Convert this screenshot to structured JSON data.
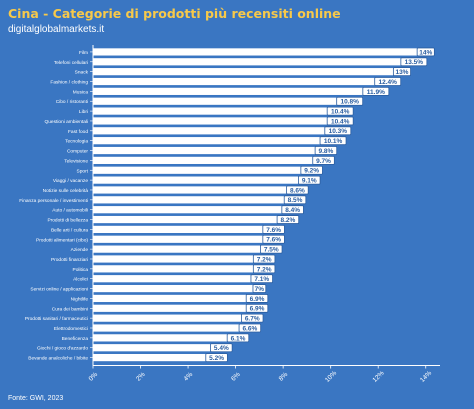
{
  "title": "Cina - Categorie di prodotti più recensiti online",
  "subtitle": "digitalglobalmarkets.it",
  "source": "Fonte: GWI, 2023",
  "colors": {
    "background": "#3a76c2",
    "bar": "#ffffff",
    "title": "#f7c94a",
    "label_text": "#2a5da0"
  },
  "chart_data": {
    "type": "bar",
    "orientation": "horizontal",
    "categories": [
      "Film",
      "Telefoni cellulari",
      "Snack",
      "Fashion / clothing",
      "Musica",
      "Cibo / ristoranti",
      "Libri",
      "Questioni ambientali",
      "Fast food",
      "Tecnologia",
      "Computer",
      "Televisione",
      "Sport",
      "Viaggi / vacanze",
      "Notizie sulle celebrità",
      "Finanza personale / investimenti",
      "Auto / automobili",
      "Prodotti di bellezza",
      "Belle arti / cultura",
      "Prodotti alimentari (cibo)",
      "Aziende",
      "Prodotti finanziari",
      "Politica",
      "Alcolici",
      "Servizi online / applicazioni",
      "Nightlife",
      "Cura dei bambini",
      "Prodotti sanitari / farmaceutici",
      "Elettrodomestici",
      "Beneficenza",
      "Giochi / gioco d'azzardo",
      "Bevande analcoliche / bibite"
    ],
    "values": [
      14,
      13.5,
      13,
      12.4,
      11.9,
      10.8,
      10.4,
      10.4,
      10.3,
      10.1,
      9.8,
      9.7,
      9.2,
      9.1,
      8.6,
      8.5,
      8.4,
      8.2,
      7.6,
      7.6,
      7.5,
      7.2,
      7.2,
      7.1,
      7,
      6.9,
      6.9,
      6.7,
      6.6,
      6.1,
      5.4,
      5.2
    ],
    "data_labels": [
      "14%",
      "13.5%",
      "13%",
      "12.4%",
      "11.9%",
      "10.8%",
      "10.4%",
      "10.4%",
      "10.3%",
      "10.1%",
      "9.8%",
      "9.7%",
      "9.2%",
      "9.1%",
      "8.6%",
      "8.5%",
      "8.4%",
      "8.2%",
      "7.6%",
      "7.6%",
      "7.5%",
      "7.2%",
      "7.2%",
      "7.1%",
      "7%",
      "6.9%",
      "6.9%",
      "6.7%",
      "6.6%",
      "6.1%",
      "5.4%",
      "5.2%"
    ],
    "x_ticks": [
      "0%",
      "2%",
      "4%",
      "6%",
      "8%",
      "10%",
      "12%",
      "14%"
    ],
    "xlim": [
      0,
      14.6
    ],
    "grid": false
  }
}
